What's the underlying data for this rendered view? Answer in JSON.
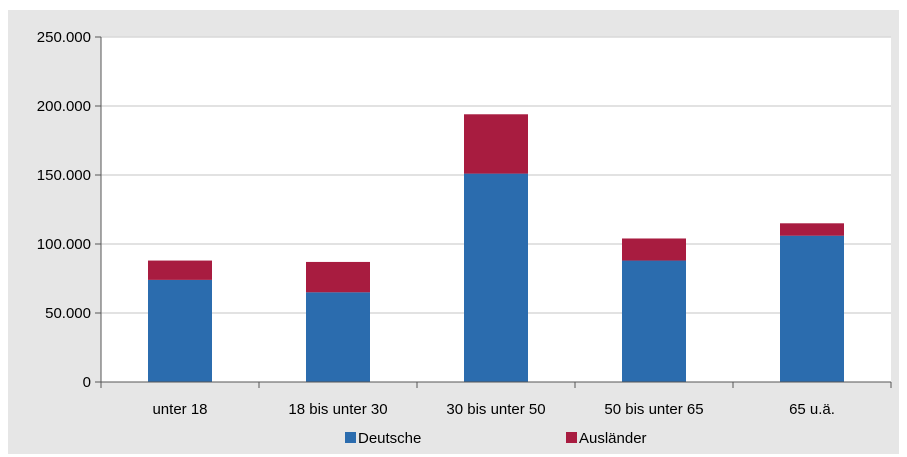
{
  "chart_data": {
    "type": "bar",
    "stacked": true,
    "title": "",
    "xlabel": "",
    "ylabel": "",
    "categories": [
      "unter 18",
      "18 bis unter 30",
      "30 bis unter 50",
      "50 bis unter 65",
      "65 u.ä."
    ],
    "series": [
      {
        "name": "Deutsche",
        "color": "#2b6cae",
        "values": [
          74000,
          65000,
          151000,
          88000,
          106000
        ]
      },
      {
        "name": "Ausländer",
        "color": "#a81c40",
        "values": [
          14000,
          22000,
          43000,
          16000,
          9000
        ]
      }
    ],
    "ylim": [
      0,
      250000
    ],
    "yticks": [
      0,
      50000,
      100000,
      150000,
      200000,
      250000
    ],
    "ytick_labels": [
      "0",
      "50.000",
      "100.000",
      "150.000",
      "200.000",
      "250.000"
    ],
    "grid": true,
    "legend_position": "bottom",
    "background_color": "#e6e6e6",
    "plot_background_color": "#ffffff",
    "grid_color": "#d9d9d9"
  }
}
